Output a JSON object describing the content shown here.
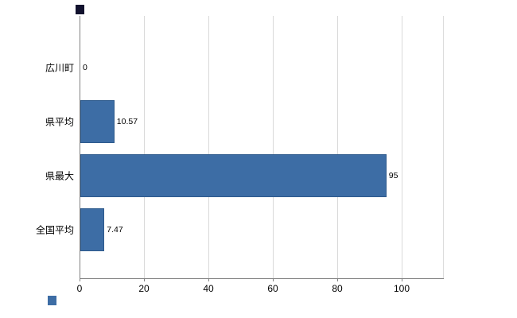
{
  "chart_data": {
    "type": "bar",
    "orientation": "horizontal",
    "title": "",
    "xlabel": "",
    "ylabel": "",
    "categories": [
      "広川町",
      "県平均",
      "県最大",
      "全国平均"
    ],
    "values": [
      0,
      10.57,
      95,
      7.47
    ],
    "value_labels": [
      "0",
      "10.57",
      "95",
      "7.47"
    ],
    "x_ticks": [
      "0",
      "20",
      "40",
      "60",
      "80",
      "100"
    ],
    "x_tick_values": [
      0,
      20,
      40,
      60,
      80,
      100
    ],
    "xlim": [
      0,
      113
    ],
    "grid": true,
    "legend_position": "none",
    "bar_color": "#3d6da5",
    "bar_border_color": "#2e5a8c",
    "grid_color": "#d9d9d9",
    "axis_color": "#808080",
    "text_color": "#000000"
  },
  "decorations": {
    "top_left_square_color": "#12122e",
    "bottom_left_square_color": "#3d6da5"
  }
}
